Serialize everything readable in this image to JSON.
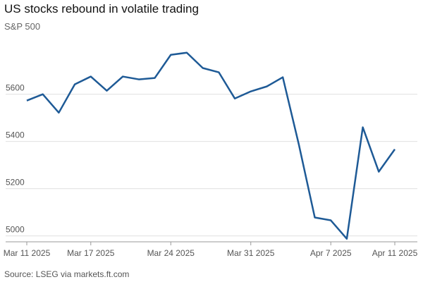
{
  "chart_data": {
    "type": "line",
    "title": "US stocks rebound in volatile trading",
    "subtitle": "S&P 500",
    "source": "Source: LSEG via markets.ft.com",
    "categories": [
      "Mar 11 2025",
      null,
      null,
      null,
      "Mar 17 2025",
      null,
      null,
      null,
      null,
      "Mar 24 2025",
      null,
      null,
      null,
      null,
      "Mar 31 2025",
      null,
      null,
      null,
      null,
      "Apr 7 2025",
      null,
      null,
      null,
      "Apr 11 2025"
    ],
    "series": [
      {
        "name": "S&P 500",
        "color": "#1e5a96",
        "values": [
          5573,
          5600,
          5522,
          5642,
          5675,
          5615,
          5675,
          5663,
          5669,
          5767,
          5776,
          5711,
          5693,
          5582,
          5612,
          5633,
          5672,
          5388,
          5078,
          5066,
          4988,
          5460,
          5272,
          5367
        ]
      }
    ],
    "ylim": [
      4975,
      5820
    ],
    "yticks": [
      5000,
      5200,
      5400,
      5600
    ],
    "grid": true
  }
}
